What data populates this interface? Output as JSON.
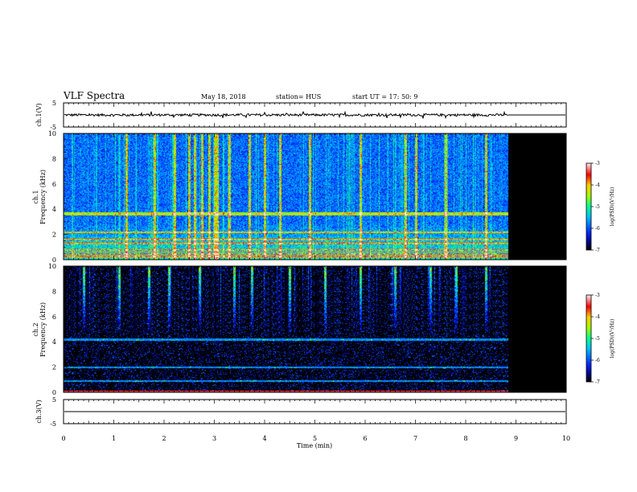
{
  "header": {
    "title": "VLF Spectra",
    "date": "May 18, 2018",
    "station": "station= HUS",
    "start": "start  UT  =   17: 50: 9"
  },
  "colorbar": {
    "label": "log(PSD)(V²/Hz)",
    "ticks": [
      "-3",
      "-4",
      "-5",
      "-6",
      "-7"
    ]
  },
  "chart_data": [
    {
      "type": "line",
      "panel": "ch1 waveform",
      "ylabel": "ch.1(V)",
      "ylim": [
        -5,
        5
      ],
      "yticks": [
        "5",
        "-5"
      ],
      "xlim": [
        0,
        10
      ],
      "trace_level": 0,
      "trace_amplitude": 0.5,
      "data_end": 8.85
    },
    {
      "type": "heatmap",
      "panel": "ch1 spectrogram",
      "ylabel": [
        "ch.1",
        "Frequency  (kHz)"
      ],
      "ylim": [
        0,
        10
      ],
      "yticks": [
        "0",
        "2",
        "4",
        "6",
        "8",
        "10"
      ],
      "xlim": [
        0,
        10
      ],
      "zlim": [
        -7,
        -3
      ],
      "data_end": 8.85,
      "background": -5.9,
      "bands_khz": [
        0.3,
        0.5,
        0.8,
        1.3,
        1.6,
        2.2,
        3.6,
        3.75
      ],
      "sferic_times_min": [
        1.25,
        1.8,
        2.2,
        2.5,
        2.6,
        2.75,
        2.9,
        3.0,
        3.05,
        3.3,
        3.7,
        4.0,
        4.3,
        4.9,
        5.9,
        6.8,
        7.0,
        7.6,
        8.4
      ]
    },
    {
      "type": "heatmap",
      "panel": "ch2 spectrogram",
      "ylabel": [
        "ch.2",
        "Frequency  (kHz)"
      ],
      "ylim": [
        0,
        10
      ],
      "yticks": [
        "0",
        "2",
        "4",
        "6",
        "8",
        "10"
      ],
      "xlim": [
        0,
        10
      ],
      "zlim": [
        -7,
        -3
      ],
      "data_end": 8.85,
      "background": -7,
      "bands_khz": [
        0.9,
        2.0,
        4.2
      ],
      "sferic_times_min": [
        0.4,
        1.1,
        1.7,
        2.1,
        2.7,
        3.4,
        3.75,
        4.5,
        5.2,
        5.9,
        6.6,
        7.3,
        7.8,
        8.4
      ]
    },
    {
      "type": "line",
      "panel": "ch3 waveform",
      "ylabel": "ch.3(V)",
      "ylim": [
        -5,
        5
      ],
      "yticks": [
        "5",
        "-5"
      ],
      "xlim": [
        0,
        10
      ],
      "trace_level": 0
    }
  ],
  "xaxis": {
    "label": "Time  (min)",
    "ticks": [
      "0",
      "1",
      "2",
      "3",
      "4",
      "5",
      "6",
      "7",
      "8",
      "9",
      "10"
    ]
  }
}
